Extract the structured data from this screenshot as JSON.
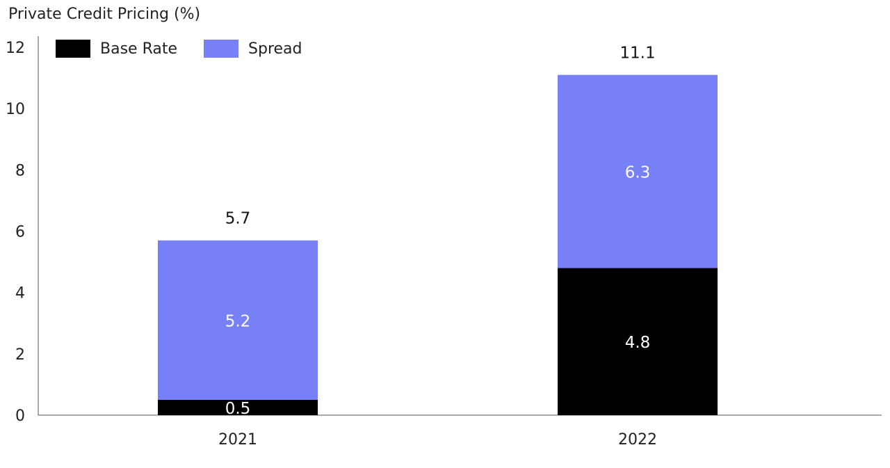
{
  "title": "Private Credit Pricing (%)",
  "legend": {
    "placement": "top-left",
    "items": [
      {
        "label": "Base Rate",
        "color": "#000000"
      },
      {
        "label": "Spread",
        "color": "#7880f8"
      }
    ]
  },
  "chart_data": {
    "type": "bar",
    "stacked": true,
    "categories": [
      "2021",
      "2022"
    ],
    "series": [
      {
        "name": "Base Rate",
        "color": "#000000",
        "values": [
          0.5,
          4.8
        ]
      },
      {
        "name": "Spread",
        "color": "#7880f8",
        "values": [
          5.2,
          6.3
        ]
      }
    ],
    "totals": [
      "5.7",
      "11.1"
    ],
    "segment_labels": {
      "Base Rate": [
        "0.5",
        "4.8"
      ],
      "Spread": [
        "5.2",
        "6.3"
      ]
    },
    "ylim": [
      0,
      12
    ],
    "yticks": [
      "0",
      "2",
      "4",
      "6",
      "8",
      "10",
      "12"
    ],
    "grid": false,
    "xlabel": "",
    "ylabel": ""
  }
}
